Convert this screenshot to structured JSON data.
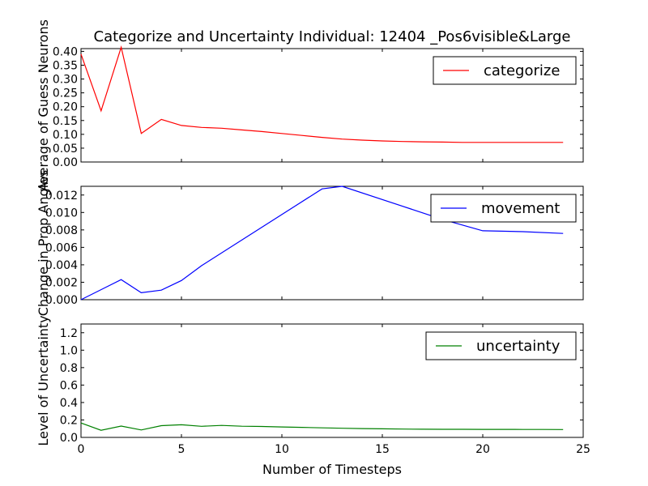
{
  "title": "Categorize and Uncertainty Individual: 12404 _Pos6visible&Large",
  "chart_data": [
    {
      "type": "line",
      "ylabel": "Average of Guess Neurons",
      "xlabel": "",
      "xlim": [
        0,
        25
      ],
      "ylim": [
        0.0,
        0.41
      ],
      "yticks": [
        "0.00",
        "0.05",
        "0.10",
        "0.15",
        "0.20",
        "0.25",
        "0.30",
        "0.35",
        "0.40"
      ],
      "legend_position": "top-right",
      "series": [
        {
          "name": "categorize",
          "color": "#ff0000",
          "x": [
            0,
            1,
            2,
            3,
            4,
            5,
            6,
            7,
            8,
            9,
            10,
            11,
            12,
            13,
            14,
            15,
            16,
            17,
            18,
            19,
            20,
            21,
            22,
            23,
            24
          ],
          "y": [
            0.39,
            0.185,
            0.415,
            0.103,
            0.154,
            0.132,
            0.125,
            0.122,
            0.116,
            0.11,
            0.103,
            0.096,
            0.089,
            0.083,
            0.079,
            0.076,
            0.074,
            0.073,
            0.072,
            0.071,
            0.071,
            0.071,
            0.071,
            0.071,
            0.071
          ]
        }
      ]
    },
    {
      "type": "line",
      "ylabel": "Change in Prop Angles",
      "xlabel": "",
      "xlim": [
        0,
        25
      ],
      "ylim": [
        0.0,
        0.013
      ],
      "yticks": [
        "0.000",
        "0.002",
        "0.004",
        "0.006",
        "0.008",
        "0.010",
        "0.012"
      ],
      "legend_position": "top-right",
      "series": [
        {
          "name": "movement",
          "color": "#0000ff",
          "x": [
            0,
            2,
            3,
            4,
            5,
            6,
            12,
            13,
            18,
            20,
            22,
            24
          ],
          "y": [
            0.0,
            0.0023,
            0.0008,
            0.0011,
            0.0022,
            0.0039,
            0.0127,
            0.013,
            0.0092,
            0.0079,
            0.0078,
            0.0076
          ]
        }
      ]
    },
    {
      "type": "line",
      "ylabel": "Level of Uncertainty",
      "xlabel": "Number of Timesteps",
      "xlim": [
        0,
        25
      ],
      "ylim": [
        0.0,
        1.3
      ],
      "yticks": [
        "0.0",
        "0.2",
        "0.4",
        "0.6",
        "0.8",
        "1.0",
        "1.2"
      ],
      "xticks": [
        "0",
        "5",
        "10",
        "15",
        "20",
        "25"
      ],
      "legend_position": "top-right",
      "series": [
        {
          "name": "uncertainty",
          "color": "#008000",
          "x": [
            0,
            1,
            2,
            3,
            4,
            5,
            6,
            7,
            8,
            9,
            10,
            11,
            12,
            13,
            14,
            15,
            16,
            17,
            18,
            19,
            20,
            21,
            22,
            23,
            24
          ],
          "y": [
            0.165,
            0.082,
            0.13,
            0.085,
            0.135,
            0.145,
            0.127,
            0.137,
            0.128,
            0.125,
            0.12,
            0.115,
            0.11,
            0.105,
            0.101,
            0.098,
            0.096,
            0.094,
            0.093,
            0.093,
            0.092,
            0.092,
            0.091,
            0.091,
            0.09
          ]
        }
      ]
    }
  ]
}
